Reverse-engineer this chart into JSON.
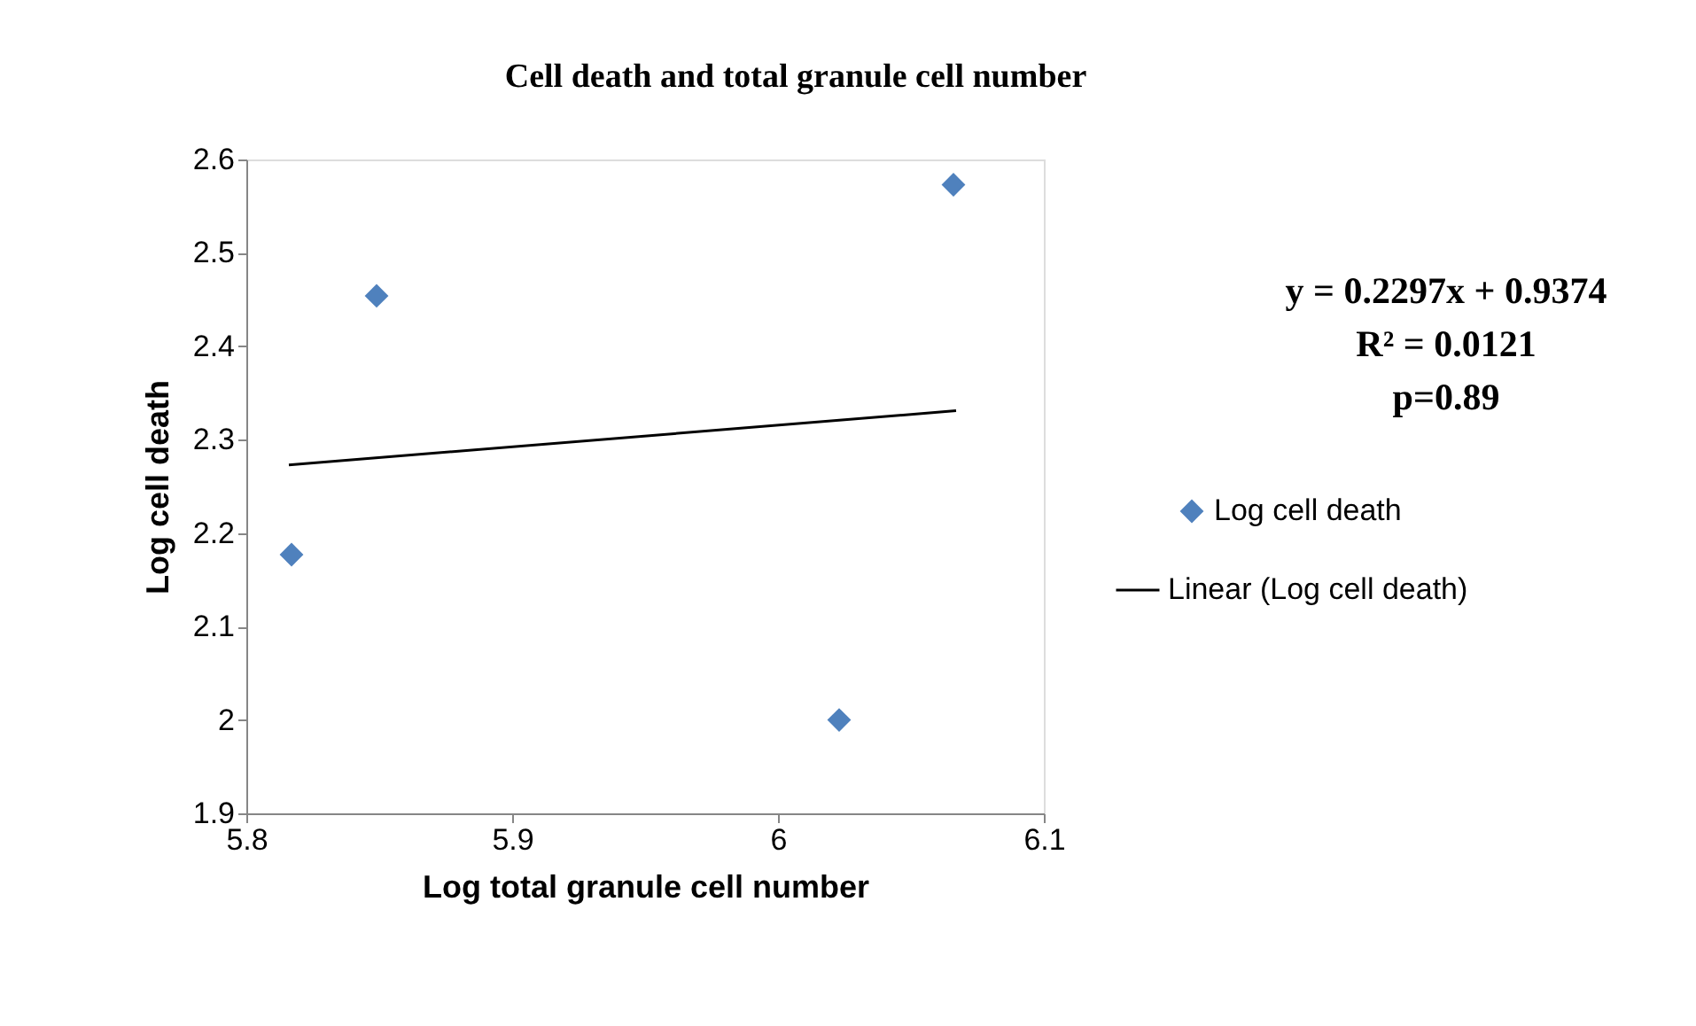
{
  "chart_data": {
    "type": "scatter",
    "title": "Cell death and total granule cell number",
    "xlabel": "Log total granule cell number",
    "ylabel": "Log cell death",
    "series": [
      {
        "name": "Log cell death",
        "color": "#4f81bd",
        "marker": "diamond",
        "x": [
          5.817,
          5.849,
          6.023,
          6.066
        ],
        "values": [
          2.177,
          2.454,
          2.0,
          2.573
        ]
      },
      {
        "name": "Linear (Log cell death)",
        "type": "line",
        "color": "#000000",
        "line_style": "solid",
        "x": [
          5.816,
          6.067
        ],
        "values": [
          2.273,
          2.331
        ]
      }
    ],
    "xlim": [
      5.8,
      6.1
    ],
    "xticks": [
      5.8,
      5.9,
      6,
      6.1
    ],
    "ylim": [
      1.9,
      2.6
    ],
    "yticks": [
      1.9,
      2,
      2.1,
      2.2,
      2.3,
      2.4,
      2.5,
      2.6
    ],
    "grid": false,
    "legend": "right",
    "annotations": [
      "y = 0.2297x + 0.9374",
      "R² = 0.0121",
      "p=0.89"
    ]
  }
}
